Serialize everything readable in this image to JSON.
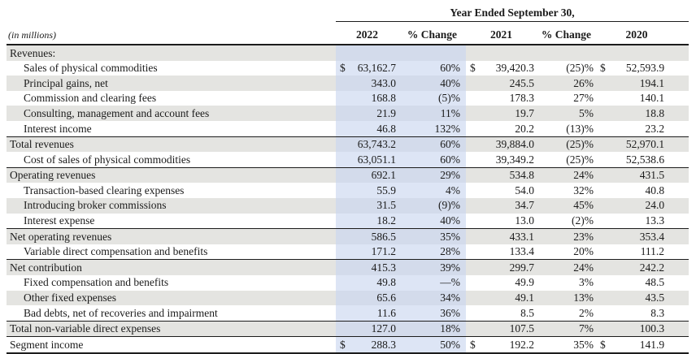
{
  "table": {
    "units_note": "(in millions)",
    "header": {
      "span_title": "Year Ended September 30,",
      "columns": [
        "2022",
        "% Change",
        "2021",
        "% Change",
        "2020"
      ]
    },
    "currency_symbol": "$",
    "rows": [
      {
        "label": "Revenues:",
        "indent": false,
        "dollar": false,
        "values": [
          "",
          "",
          "",
          "",
          ""
        ]
      },
      {
        "label": "Sales of physical commodities",
        "indent": true,
        "dollar": true,
        "values": [
          "63,162.7",
          "60%",
          "39,420.3",
          "(25)%",
          "52,593.9"
        ]
      },
      {
        "label": "Principal gains, net",
        "indent": true,
        "dollar": false,
        "values": [
          "343.0",
          "40%",
          "245.5",
          "26%",
          "194.1"
        ]
      },
      {
        "label": "Commission and clearing fees",
        "indent": true,
        "dollar": false,
        "values": [
          "168.8",
          "(5)%",
          "178.3",
          "27%",
          "140.1"
        ]
      },
      {
        "label": "Consulting, management and account fees",
        "indent": true,
        "dollar": false,
        "values": [
          "21.9",
          "11%",
          "19.7",
          "5%",
          "18.8"
        ]
      },
      {
        "label": "Interest income",
        "indent": true,
        "dollar": false,
        "values": [
          "46.8",
          "132%",
          "20.2",
          "(13)%",
          "23.2"
        ],
        "rule": "thin"
      },
      {
        "label": "Total revenues",
        "indent": false,
        "dollar": false,
        "values": [
          "63,743.2",
          "60%",
          "39,884.0",
          "(25)%",
          "52,970.1"
        ]
      },
      {
        "label": "Cost of sales of physical commodities",
        "indent": true,
        "dollar": false,
        "values": [
          "63,051.1",
          "60%",
          "39,349.2",
          "(25)%",
          "52,538.6"
        ],
        "rule": "thin"
      },
      {
        "label": "Operating revenues",
        "indent": false,
        "dollar": false,
        "values": [
          "692.1",
          "29%",
          "534.8",
          "24%",
          "431.5"
        ]
      },
      {
        "label": "Transaction-based clearing expenses",
        "indent": true,
        "dollar": false,
        "values": [
          "55.9",
          "4%",
          "54.0",
          "32%",
          "40.8"
        ]
      },
      {
        "label": "Introducing broker commissions",
        "indent": true,
        "dollar": false,
        "values": [
          "31.5",
          "(9)%",
          "34.7",
          "45%",
          "24.0"
        ]
      },
      {
        "label": "Interest expense",
        "indent": true,
        "dollar": false,
        "values": [
          "18.2",
          "40%",
          "13.0",
          "(2)%",
          "13.3"
        ],
        "rule": "thin"
      },
      {
        "label": "Net operating revenues",
        "indent": false,
        "dollar": false,
        "values": [
          "586.5",
          "35%",
          "433.1",
          "23%",
          "353.4"
        ]
      },
      {
        "label": "Variable direct compensation and benefits",
        "indent": true,
        "dollar": false,
        "values": [
          "171.2",
          "28%",
          "133.4",
          "20%",
          "111.2"
        ],
        "rule": "thin"
      },
      {
        "label": "Net contribution",
        "indent": false,
        "dollar": false,
        "values": [
          "415.3",
          "39%",
          "299.7",
          "24%",
          "242.2"
        ]
      },
      {
        "label": "Fixed compensation and benefits",
        "indent": true,
        "dollar": false,
        "values": [
          "49.8",
          "—%",
          "49.9",
          "3%",
          "48.5"
        ]
      },
      {
        "label": "Other fixed expenses",
        "indent": true,
        "dollar": false,
        "values": [
          "65.6",
          "34%",
          "49.1",
          "13%",
          "43.5"
        ]
      },
      {
        "label": "Bad debts, net of recoveries and impairment",
        "indent": true,
        "dollar": false,
        "values": [
          "11.6",
          "36%",
          "8.5",
          "2%",
          "8.3"
        ],
        "rule": "thin"
      },
      {
        "label": "Total non-variable direct expenses",
        "indent": false,
        "dollar": false,
        "values": [
          "127.0",
          "18%",
          "107.5",
          "7%",
          "100.3"
        ],
        "rule": "thin"
      },
      {
        "label": "Segment income",
        "indent": false,
        "dollar": true,
        "values": [
          "288.3",
          "50%",
          "192.2",
          "35%",
          "141.9"
        ],
        "rule": "thick"
      }
    ],
    "colors": {
      "stripe_gray": "#e4e4e1",
      "highlight_blue_on_white": "#dde5f5",
      "highlight_blue_on_gray": "#d3dbeb",
      "text": "#1b1b1b",
      "rule": "#1c1c1c"
    }
  }
}
